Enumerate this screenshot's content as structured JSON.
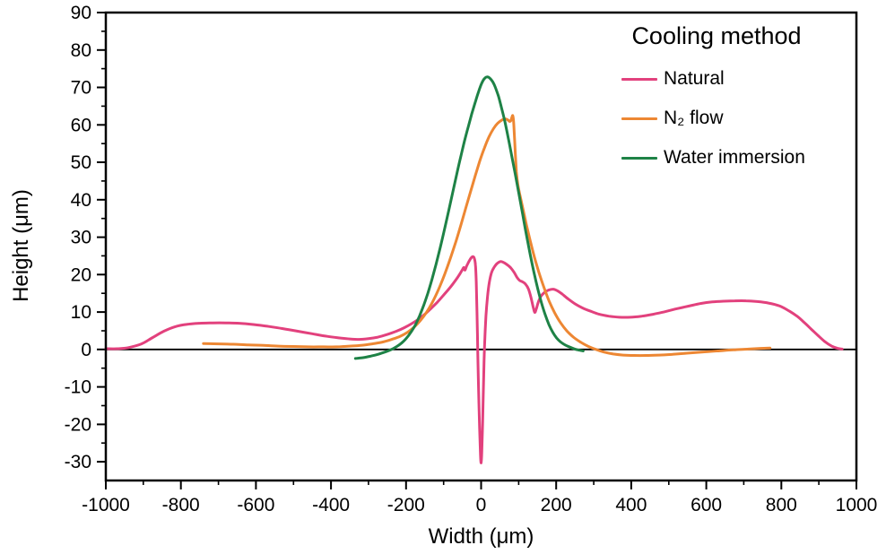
{
  "figure": {
    "legend_title": "Cooling method",
    "xlabel": "Width (μm)",
    "ylabel": "Height (μm)",
    "background": "#ffffff",
    "frame_color": "#000000",
    "zero_line_color": "#000000"
  },
  "chart_data": {
    "type": "line",
    "title": "",
    "xlabel": "Width (μm)",
    "ylabel": "Height (μm)",
    "xlim": [
      -1000,
      1000
    ],
    "ylim": [
      -35,
      90
    ],
    "x_ticks": [
      -1000,
      -800,
      -600,
      -400,
      -200,
      0,
      200,
      400,
      600,
      800,
      1000
    ],
    "y_ticks": [
      -30,
      -20,
      -10,
      0,
      10,
      20,
      30,
      40,
      50,
      60,
      70,
      80,
      90
    ],
    "x_minor_step": 100,
    "y_minor_step": 5,
    "grid": false,
    "zero_line": true,
    "legend_position": "upper right",
    "legend_title": "Cooling method",
    "series": [
      {
        "name": "Natural",
        "color": "#e2417d",
        "points": [
          [
            -1000,
            0.2
          ],
          [
            -970,
            0.2
          ],
          [
            -940,
            0.5
          ],
          [
            -905,
            1.5
          ],
          [
            -875,
            3.2
          ],
          [
            -845,
            4.9
          ],
          [
            -815,
            6.1
          ],
          [
            -785,
            6.7
          ],
          [
            -750,
            7.0
          ],
          [
            -715,
            7.1
          ],
          [
            -680,
            7.1
          ],
          [
            -645,
            7.0
          ],
          [
            -610,
            6.7
          ],
          [
            -570,
            6.2
          ],
          [
            -530,
            5.6
          ],
          [
            -490,
            4.9
          ],
          [
            -450,
            4.2
          ],
          [
            -410,
            3.5
          ],
          [
            -380,
            3.1
          ],
          [
            -350,
            2.8
          ],
          [
            -325,
            2.7
          ],
          [
            -300,
            2.9
          ],
          [
            -275,
            3.3
          ],
          [
            -250,
            4.0
          ],
          [
            -225,
            4.9
          ],
          [
            -205,
            5.8
          ],
          [
            -185,
            6.9
          ],
          [
            -165,
            8.2
          ],
          [
            -148,
            9.6
          ],
          [
            -132,
            11.1
          ],
          [
            -116,
            12.7
          ],
          [
            -101,
            14.4
          ],
          [
            -88,
            15.9
          ],
          [
            -76,
            17.4
          ],
          [
            -65,
            18.9
          ],
          [
            -56,
            20.3
          ],
          [
            -50,
            21.3
          ],
          [
            -46,
            21.9
          ],
          [
            -43,
            21.2
          ],
          [
            -39,
            22.2
          ],
          [
            -33,
            23.4
          ],
          [
            -27,
            24.4
          ],
          [
            -22,
            24.8
          ],
          [
            -18,
            24.3
          ],
          [
            -15,
            22.5
          ],
          [
            -13,
            18.0
          ],
          [
            -11,
            10.0
          ],
          [
            -9,
            0.0
          ],
          [
            -7,
            -10.0
          ],
          [
            -4,
            -21.0
          ],
          [
            -2,
            -27.5
          ],
          [
            0,
            -30.3
          ],
          [
            2,
            -27.0
          ],
          [
            4,
            -19.5
          ],
          [
            6,
            -11.0
          ],
          [
            8,
            -3.0
          ],
          [
            10,
            3.0
          ],
          [
            13,
            9.0
          ],
          [
            17,
            14.0
          ],
          [
            22,
            18.0
          ],
          [
            28,
            20.6
          ],
          [
            35,
            22.0
          ],
          [
            43,
            23.0
          ],
          [
            52,
            23.5
          ],
          [
            61,
            23.2
          ],
          [
            70,
            22.6
          ],
          [
            79,
            21.8
          ],
          [
            88,
            20.6
          ],
          [
            96,
            19.2
          ],
          [
            103,
            18.4
          ],
          [
            110,
            18.1
          ],
          [
            118,
            17.5
          ],
          [
            126,
            16.2
          ],
          [
            133,
            13.8
          ],
          [
            139,
            11.2
          ],
          [
            143,
            9.9
          ],
          [
            147,
            10.8
          ],
          [
            153,
            12.8
          ],
          [
            160,
            14.3
          ],
          [
            170,
            15.3
          ],
          [
            181,
            15.9
          ],
          [
            192,
            16.1
          ],
          [
            203,
            15.7
          ],
          [
            216,
            14.8
          ],
          [
            232,
            13.5
          ],
          [
            250,
            12.2
          ],
          [
            270,
            11.1
          ],
          [
            292,
            10.2
          ],
          [
            315,
            9.4
          ],
          [
            340,
            8.9
          ],
          [
            368,
            8.6
          ],
          [
            398,
            8.6
          ],
          [
            428,
            8.9
          ],
          [
            458,
            9.4
          ],
          [
            490,
            10.1
          ],
          [
            522,
            10.9
          ],
          [
            554,
            11.6
          ],
          [
            586,
            12.3
          ],
          [
            616,
            12.7
          ],
          [
            646,
            12.9
          ],
          [
            676,
            13.0
          ],
          [
            706,
            13.0
          ],
          [
            736,
            12.8
          ],
          [
            766,
            12.4
          ],
          [
            796,
            11.6
          ],
          [
            822,
            10.2
          ],
          [
            843,
            8.8
          ],
          [
            860,
            7.3
          ],
          [
            878,
            5.6
          ],
          [
            897,
            3.8
          ],
          [
            916,
            2.1
          ],
          [
            934,
            0.9
          ],
          [
            950,
            0.3
          ],
          [
            962,
            0.1
          ]
        ]
      },
      {
        "name": "N₂ flow",
        "color": "#ed8733",
        "points": [
          [
            -740,
            1.6
          ],
          [
            -700,
            1.5
          ],
          [
            -660,
            1.4
          ],
          [
            -620,
            1.2
          ],
          [
            -580,
            1.1
          ],
          [
            -540,
            0.9
          ],
          [
            -500,
            0.8
          ],
          [
            -460,
            0.7
          ],
          [
            -420,
            0.7
          ],
          [
            -385,
            0.7
          ],
          [
            -350,
            0.9
          ],
          [
            -320,
            1.1
          ],
          [
            -290,
            1.5
          ],
          [
            -262,
            2.0
          ],
          [
            -238,
            2.7
          ],
          [
            -216,
            3.5
          ],
          [
            -196,
            4.6
          ],
          [
            -178,
            6.0
          ],
          [
            -162,
            7.7
          ],
          [
            -147,
            9.7
          ],
          [
            -133,
            12.0
          ],
          [
            -119,
            14.8
          ],
          [
            -106,
            17.8
          ],
          [
            -93,
            21.2
          ],
          [
            -80,
            24.9
          ],
          [
            -67,
            28.9
          ],
          [
            -54,
            33.2
          ],
          [
            -41,
            37.7
          ],
          [
            -28,
            42.2
          ],
          [
            -15,
            46.6
          ],
          [
            -3,
            50.5
          ],
          [
            9,
            53.9
          ],
          [
            21,
            56.8
          ],
          [
            33,
            59.0
          ],
          [
            44,
            60.4
          ],
          [
            54,
            61.2
          ],
          [
            63,
            61.6
          ],
          [
            70,
            61.4
          ],
          [
            76,
            60.9
          ],
          [
            79,
            61.1
          ],
          [
            82,
            62.0
          ],
          [
            84,
            62.5
          ],
          [
            86,
            61.5
          ],
          [
            88,
            58.5
          ],
          [
            91,
            52.5
          ],
          [
            94,
            47.5
          ],
          [
            98,
            44.0
          ],
          [
            104,
            41.0
          ],
          [
            112,
            37.3
          ],
          [
            121,
            33.2
          ],
          [
            131,
            29.0
          ],
          [
            142,
            24.7
          ],
          [
            154,
            20.6
          ],
          [
            167,
            16.7
          ],
          [
            181,
            13.0
          ],
          [
            196,
            9.8
          ],
          [
            212,
            7.1
          ],
          [
            229,
            4.9
          ],
          [
            247,
            3.2
          ],
          [
            266,
            1.9
          ],
          [
            286,
            0.8
          ],
          [
            306,
            0.0
          ],
          [
            328,
            -0.7
          ],
          [
            352,
            -1.2
          ],
          [
            378,
            -1.5
          ],
          [
            408,
            -1.6
          ],
          [
            440,
            -1.6
          ],
          [
            474,
            -1.5
          ],
          [
            510,
            -1.3
          ],
          [
            548,
            -1.0
          ],
          [
            588,
            -0.7
          ],
          [
            630,
            -0.4
          ],
          [
            672,
            -0.1
          ],
          [
            712,
            0.1
          ],
          [
            745,
            0.3
          ],
          [
            770,
            0.4
          ]
        ]
      },
      {
        "name": "Water immersion",
        "color": "#1e8246",
        "points": [
          [
            -335,
            -2.4
          ],
          [
            -315,
            -2.2
          ],
          [
            -295,
            -1.8
          ],
          [
            -275,
            -1.3
          ],
          [
            -257,
            -0.7
          ],
          [
            -241,
            -0.1
          ],
          [
            -226,
            0.7
          ],
          [
            -212,
            1.7
          ],
          [
            -199,
            3.0
          ],
          [
            -187,
            4.6
          ],
          [
            -175,
            6.6
          ],
          [
            -164,
            9.0
          ],
          [
            -153,
            11.8
          ],
          [
            -142,
            15.0
          ],
          [
            -131,
            18.7
          ],
          [
            -120,
            22.8
          ],
          [
            -109,
            27.2
          ],
          [
            -98,
            31.9
          ],
          [
            -87,
            36.8
          ],
          [
            -76,
            41.8
          ],
          [
            -65,
            46.8
          ],
          [
            -54,
            51.6
          ],
          [
            -44,
            55.8
          ],
          [
            -34,
            59.6
          ],
          [
            -25,
            62.9
          ],
          [
            -16,
            65.9
          ],
          [
            -8,
            68.5
          ],
          [
            -1,
            70.5
          ],
          [
            5,
            71.8
          ],
          [
            11,
            72.6
          ],
          [
            17,
            72.8
          ],
          [
            23,
            72.5
          ],
          [
            31,
            71.5
          ],
          [
            38,
            70.0
          ],
          [
            46,
            67.7
          ],
          [
            54,
            64.7
          ],
          [
            63,
            61.0
          ],
          [
            72,
            56.7
          ],
          [
            81,
            52.0
          ],
          [
            91,
            46.8
          ],
          [
            101,
            41.4
          ],
          [
            111,
            35.9
          ],
          [
            121,
            30.5
          ],
          [
            131,
            25.3
          ],
          [
            141,
            20.5
          ],
          [
            151,
            16.2
          ],
          [
            161,
            12.4
          ],
          [
            171,
            9.2
          ],
          [
            181,
            6.6
          ],
          [
            191,
            4.6
          ],
          [
            201,
            3.1
          ],
          [
            212,
            2.0
          ],
          [
            224,
            1.2
          ],
          [
            237,
            0.6
          ],
          [
            250,
            0.1
          ],
          [
            262,
            -0.2
          ],
          [
            272,
            -0.4
          ]
        ]
      }
    ]
  }
}
